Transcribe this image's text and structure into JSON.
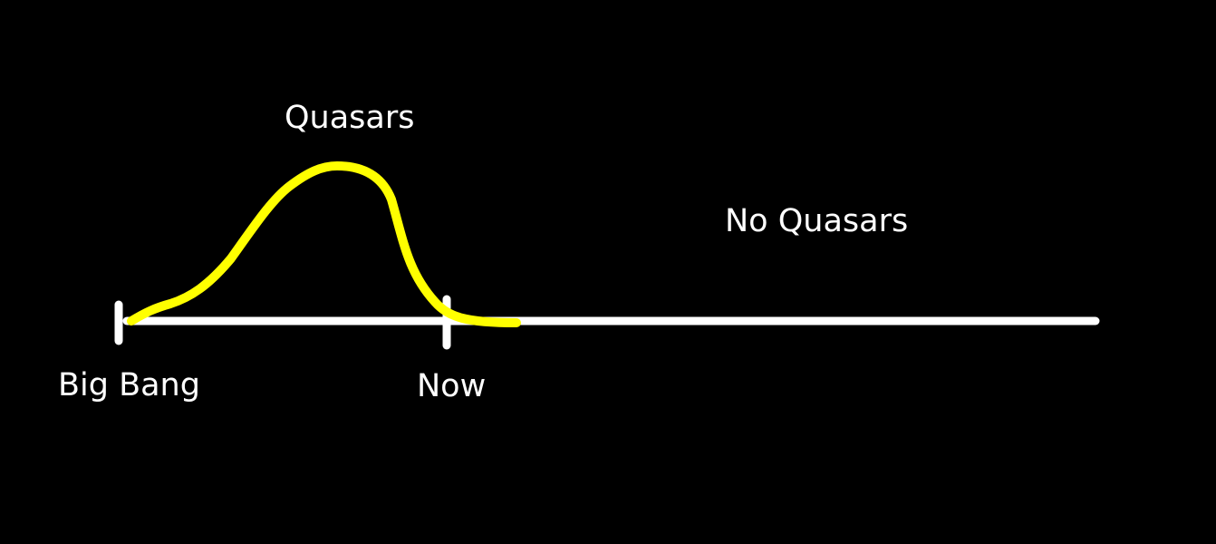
{
  "labels": {
    "quasars": "Quasars",
    "no_quasars": "No Quasars",
    "big_bang": "Big Bang",
    "now": "Now"
  },
  "colors": {
    "background": "#000000",
    "timeline": "#ffffff",
    "curve": "#ffff00",
    "text": "#ffffff"
  }
}
